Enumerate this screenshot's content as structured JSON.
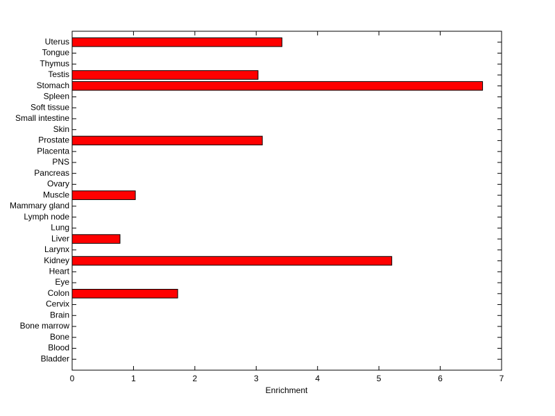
{
  "chart_data": {
    "type": "barh",
    "categories": [
      "Uterus",
      "Tongue",
      "Thymus",
      "Testis",
      "Stomach",
      "Spleen",
      "Soft tissue",
      "Small intestine",
      "Skin",
      "Prostate",
      "Placenta",
      "PNS",
      "Pancreas",
      "Ovary",
      "Muscle",
      "Mammary gland",
      "Lymph node",
      "Lung",
      "Liver",
      "Larynx",
      "Kidney",
      "Heart",
      "Eye",
      "Colon",
      "Cervix",
      "Brain",
      "Bone marrow",
      "Bone",
      "Blood",
      "Bladder"
    ],
    "values": [
      3.42,
      0,
      0,
      3.03,
      6.69,
      0,
      0,
      0,
      0,
      3.1,
      0,
      0,
      0,
      0,
      1.03,
      0,
      0,
      0,
      0.78,
      0,
      5.21,
      0,
      0,
      1.72,
      0,
      0,
      0,
      0,
      0,
      0
    ],
    "color": "#ff0000",
    "x_label": "Enrichment",
    "xlim": [
      0,
      7
    ],
    "xticks": [
      0,
      1,
      2,
      3,
      4,
      5,
      6,
      7
    ]
  }
}
